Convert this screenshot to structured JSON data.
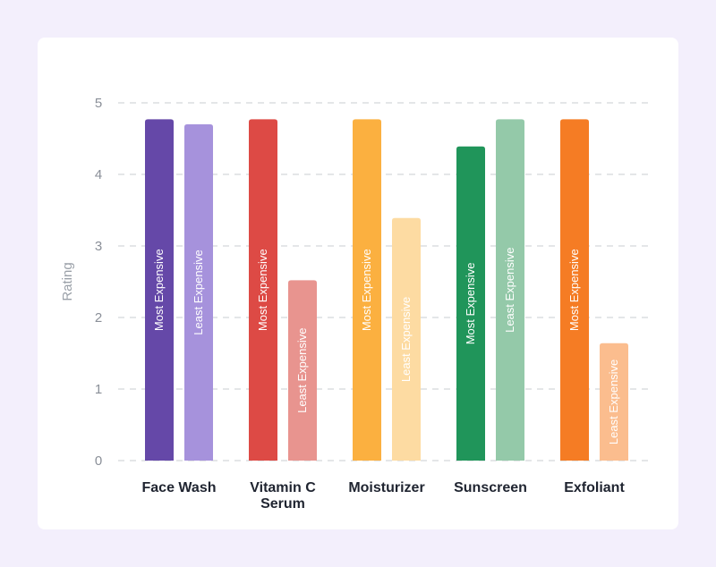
{
  "chart_data": {
    "type": "bar",
    "ylabel": "Rating",
    "ylim": [
      0,
      5
    ],
    "yticks": [
      0,
      1,
      2,
      3,
      4,
      5
    ],
    "grid": true,
    "categories": [
      {
        "lines": [
          "Face Wash"
        ]
      },
      {
        "lines": [
          "Vitamin C",
          "Serum"
        ]
      },
      {
        "lines": [
          "Moisturizer"
        ]
      },
      {
        "lines": [
          "Sunscreen"
        ]
      },
      {
        "lines": [
          "Exfoliant"
        ]
      }
    ],
    "series": [
      {
        "name": "Most Expensive",
        "values": [
          4.77,
          4.77,
          4.77,
          4.39,
          4.77
        ],
        "colors": [
          "#6548a8",
          "#dd4a45",
          "#fbb040",
          "#20955a",
          "#f57c24"
        ]
      },
      {
        "name": "Least Expensive",
        "values": [
          4.7,
          2.52,
          3.39,
          4.77,
          1.64
        ],
        "colors": [
          "#a692dc",
          "#e8948f",
          "#fddba2",
          "#94c9a9",
          "#fbbd8e"
        ]
      }
    ]
  }
}
